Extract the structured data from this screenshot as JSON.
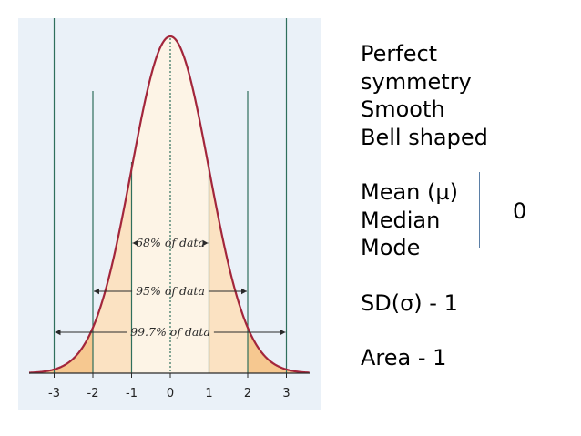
{
  "figure": {
    "x_ticks": [
      "-3",
      "-2",
      "-1",
      "0",
      "1",
      "2",
      "3"
    ],
    "ranges": [
      {
        "label": "68% of data",
        "sigma": 1
      },
      {
        "label": "95% of data",
        "sigma": 2
      },
      {
        "label": "99.7% of data",
        "sigma": 3
      }
    ],
    "colors": {
      "background": "#eaf1f8",
      "curve": "#a3263b",
      "center_fill": "#fdf4e6",
      "mid_fill": "#fbe2c2",
      "tail_fill": "#f6c890",
      "guide_lines": "#2f6f5c"
    }
  },
  "text": {
    "line1": "Perfect",
    "line2": "symmetry",
    "line3": "Smooth",
    "line4": "Bell shaped",
    "mean": "Mean (µ)",
    "median": "Median",
    "mode": "Mode",
    "sd": "SD(σ) - 1",
    "area": "Area -  1",
    "center_value": "0"
  }
}
